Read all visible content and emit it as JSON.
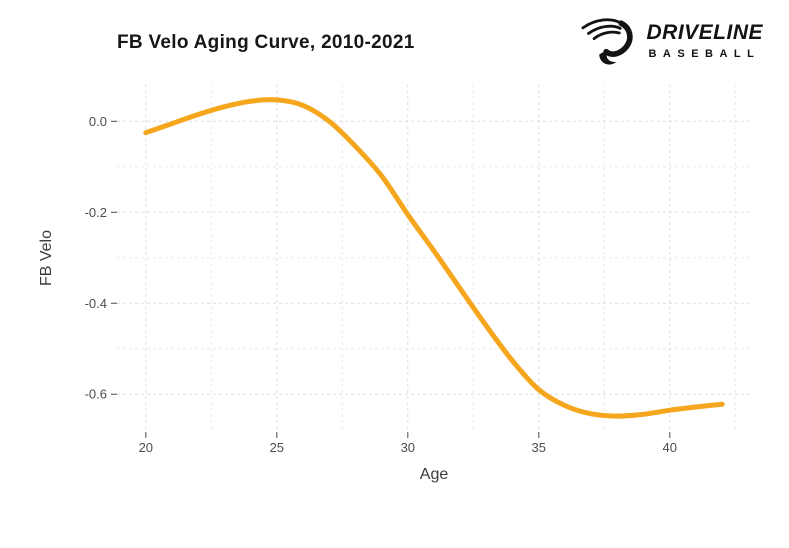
{
  "title": "FB Velo Aging Curve, 2010-2021",
  "logo": {
    "brand": "DRIVELINE",
    "sub": "BASEBALL",
    "mark": "driveline-swoosh-d",
    "color": "#131313"
  },
  "chart_data": {
    "type": "line",
    "title": "FB Velo Aging Curve, 2010-2021",
    "xlabel": "Age",
    "ylabel": "FB Velo",
    "xlim": [
      18.9,
      43.1
    ],
    "ylim": [
      -0.683,
      0.082
    ],
    "x_ticks": [
      20,
      25,
      30,
      35,
      40
    ],
    "x_tick_labels": [
      "20",
      "25",
      "30",
      "35",
      "40"
    ],
    "x_minor_ticks": [
      22.5,
      27.5,
      32.5,
      37.5,
      42.5
    ],
    "y_ticks": [
      0.0,
      -0.2,
      -0.4,
      -0.6
    ],
    "y_tick_labels": [
      "0.0",
      "-0.2",
      "-0.4",
      "-0.6"
    ],
    "y_minor_ticks": [
      -0.1,
      -0.3,
      -0.5
    ],
    "grid": "dashed",
    "legend": "none",
    "line_color": "#F5A61C",
    "line_width": 5,
    "series": [
      {
        "name": "FB Velo aging curve",
        "x": [
          20,
          21,
          22,
          23,
          24,
          25,
          26,
          27,
          28,
          29,
          30,
          31,
          32,
          33,
          34,
          35,
          36,
          37,
          38,
          39,
          40,
          41,
          42
        ],
        "y": [
          -0.025,
          -0.005,
          0.015,
          0.032,
          0.044,
          0.047,
          0.035,
          0.0,
          -0.055,
          -0.12,
          -0.205,
          -0.285,
          -0.368,
          -0.45,
          -0.527,
          -0.59,
          -0.625,
          -0.643,
          -0.648,
          -0.644,
          -0.635,
          -0.628,
          -0.622
        ]
      }
    ]
  },
  "style": {
    "grid_major_color": "#dedede",
    "grid_minor_color": "#ebebeb",
    "tick_mark_color": "#4d4d4d",
    "tick_label_color": "#4d4d4d",
    "background": "#ffffff"
  }
}
